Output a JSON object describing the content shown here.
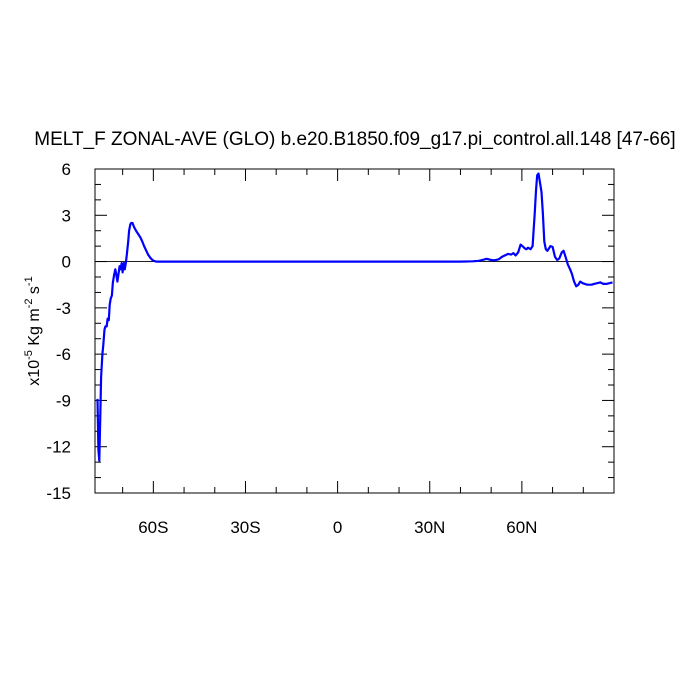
{
  "chart_data": {
    "type": "line",
    "title": "MELT_F ZONAL-AVE (GLO) b.e20.B1850.f09_g17.pi_control.all.148 [47-66]",
    "ylabel": {
      "prefix": "x10",
      "exp1": "-5",
      "mid": " Kg m",
      "exp2": "-2",
      "mid2": " s",
      "exp3": "-1"
    },
    "xlim": [
      -79,
      90
    ],
    "ylim": [
      -15,
      6
    ],
    "x_ticks": [
      {
        "value": -60,
        "label": "60S"
      },
      {
        "value": -30,
        "label": "30S"
      },
      {
        "value": 0,
        "label": "0"
      },
      {
        "value": 30,
        "label": "30N"
      },
      {
        "value": 60,
        "label": "60N"
      }
    ],
    "y_ticks": [
      {
        "value": 6,
        "label": "6"
      },
      {
        "value": 3,
        "label": "3"
      },
      {
        "value": 0,
        "label": "0"
      },
      {
        "value": -3,
        "label": "-3"
      },
      {
        "value": -6,
        "label": "-6"
      },
      {
        "value": -9,
        "label": "-9"
      },
      {
        "value": -12,
        "label": "-12"
      },
      {
        "value": -15,
        "label": "-15"
      }
    ],
    "zero_line": true,
    "series": [
      {
        "color": "#0000ff",
        "x": [
          -78.2,
          -77.9,
          -77.6,
          -77.3,
          -77.0,
          -76.6,
          -76.3,
          -75.9,
          -75.6,
          -75.2,
          -74.9,
          -74.5,
          -74.2,
          -73.9,
          -73.5,
          -73.2,
          -72.8,
          -72.4,
          -72.1,
          -71.7,
          -71.4,
          -71.0,
          -70.7,
          -70.3,
          -70.0,
          -69.6,
          -69.3,
          -68.9,
          -68.6,
          -68.2,
          -67.9,
          -67.5,
          -67.2,
          -66.8,
          -66.2,
          -65.5,
          -64.8,
          -64.2,
          -63.6,
          -63.0,
          -62.3,
          -61.7,
          -61.0,
          -60.3,
          -59.7,
          -59.0,
          -58.4,
          -57.7,
          -57.0,
          -56.4,
          -55.8,
          -55.1,
          -54.5,
          -53.5,
          -52.0,
          -50.0,
          -40.0,
          -20.0,
          0.0,
          20.0,
          40.0,
          44.0,
          46.0,
          47.5,
          48.5,
          50.0,
          51.0,
          52.5,
          53.5,
          54.5,
          55.5,
          56.5,
          57.2,
          58.0,
          58.8,
          59.6,
          60.2,
          61.0,
          61.5,
          62.0,
          62.8,
          63.5,
          64.2,
          64.6,
          65.0,
          65.4,
          66.0,
          66.4,
          66.8,
          67.3,
          67.8,
          68.3,
          68.8,
          69.3,
          70.0,
          70.8,
          71.5,
          72.2,
          73.0,
          73.6,
          74.3,
          75.0,
          75.7,
          76.3,
          77.0,
          77.7,
          78.4,
          79.0,
          79.8,
          80.5,
          81.2,
          82.0,
          82.8,
          83.5,
          84.5,
          85.5,
          86.5,
          87.5,
          88.5,
          89.5
        ],
        "y": [
          -8.9,
          -12.2,
          -12.9,
          -10.3,
          -7.5,
          -6.0,
          -5.4,
          -4.4,
          -4.2,
          -4.2,
          -3.7,
          -3.8,
          -2.8,
          -2.4,
          -2.2,
          -1.4,
          -0.9,
          -0.5,
          -0.8,
          -1.3,
          -0.9,
          -0.3,
          -0.5,
          -0.1,
          -0.7,
          -0.1,
          -0.5,
          0.0,
          0.5,
          1.3,
          2.0,
          2.4,
          2.5,
          2.5,
          2.2,
          1.95,
          1.75,
          1.55,
          1.3,
          1.0,
          0.7,
          0.45,
          0.25,
          0.1,
          0.03,
          0.0,
          0.0,
          0.0,
          0.0,
          0.0,
          0.0,
          0.0,
          0.0,
          0.0,
          0.0,
          0.0,
          0.0,
          0.0,
          0.0,
          0.0,
          0.0,
          0.02,
          0.05,
          0.12,
          0.18,
          0.1,
          0.08,
          0.15,
          0.3,
          0.4,
          0.5,
          0.45,
          0.55,
          0.4,
          0.6,
          1.1,
          1.0,
          0.85,
          0.8,
          0.9,
          0.8,
          1.0,
          3.2,
          4.6,
          5.6,
          5.7,
          5.0,
          4.5,
          3.2,
          1.3,
          0.8,
          0.7,
          0.85,
          1.0,
          0.95,
          0.3,
          0.1,
          0.2,
          0.6,
          0.7,
          0.25,
          -0.2,
          -0.5,
          -0.8,
          -1.3,
          -1.6,
          -1.5,
          -1.3,
          -1.4,
          -1.45,
          -1.5,
          -1.5,
          -1.5,
          -1.45,
          -1.4,
          -1.35,
          -1.45,
          -1.45,
          -1.4,
          -1.35
        ]
      }
    ]
  }
}
